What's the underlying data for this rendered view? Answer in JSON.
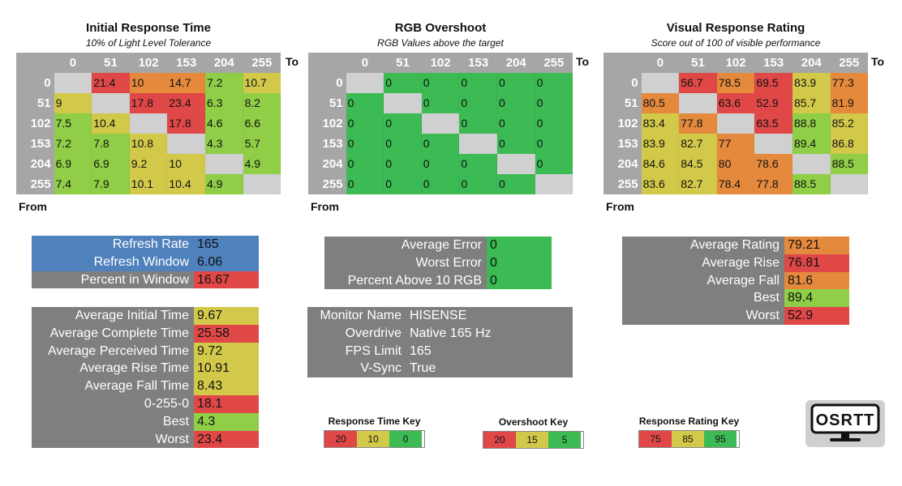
{
  "colors": {
    "red": "#e04848",
    "orange": "#e58a3d",
    "yellow": "#d2c94b",
    "green": "#3cba54",
    "lightgreen": "#8fce46",
    "gray": "#a6a6a6",
    "blue": "#4f81bd"
  },
  "chart_data": [
    {
      "type": "heatmap",
      "title": "Initial Response Time",
      "subtitle": "10% of Light Level Tolerance",
      "x_label": "To",
      "y_label": "From",
      "x": [
        "0",
        "51",
        "102",
        "153",
        "204",
        "255"
      ],
      "y": [
        "0",
        "51",
        "102",
        "153",
        "204",
        "255"
      ],
      "values": [
        [
          null,
          21.4,
          10,
          14.7,
          7.2,
          10.7
        ],
        [
          9,
          null,
          17.8,
          23.4,
          6.3,
          8.2
        ],
        [
          7.5,
          10.4,
          null,
          17.8,
          4.6,
          6.6
        ],
        [
          7.2,
          7.8,
          10.8,
          null,
          4.3,
          5.7
        ],
        [
          6.9,
          6.9,
          9.2,
          10,
          null,
          4.9
        ],
        [
          7.4,
          7.9,
          10.1,
          10.4,
          4.9,
          null
        ]
      ],
      "colors": [
        [
          null,
          "red",
          "orange",
          "orange",
          "lightgreen",
          "yellow"
        ],
        [
          "yellow",
          null,
          "red",
          "red",
          "lightgreen",
          "lightgreen"
        ],
        [
          "lightgreen",
          "yellow",
          null,
          "red",
          "lightgreen",
          "lightgreen"
        ],
        [
          "lightgreen",
          "lightgreen",
          "yellow",
          null,
          "lightgreen",
          "lightgreen"
        ],
        [
          "lightgreen",
          "lightgreen",
          "yellow",
          "yellow",
          null,
          "lightgreen"
        ],
        [
          "lightgreen",
          "lightgreen",
          "yellow",
          "yellow",
          "lightgreen",
          null
        ]
      ]
    },
    {
      "type": "heatmap",
      "title": "RGB Overshoot",
      "subtitle": "RGB Values above the target",
      "x_label": "To",
      "y_label": "From",
      "x": [
        "0",
        "51",
        "102",
        "153",
        "204",
        "255"
      ],
      "y": [
        "0",
        "51",
        "102",
        "153",
        "204",
        "255"
      ],
      "values": [
        [
          null,
          0,
          0,
          0,
          0,
          0
        ],
        [
          0,
          null,
          0,
          0,
          0,
          0
        ],
        [
          0,
          0,
          null,
          0,
          0,
          0
        ],
        [
          0,
          0,
          0,
          null,
          0,
          0
        ],
        [
          0,
          0,
          0,
          0,
          null,
          0
        ],
        [
          0,
          0,
          0,
          0,
          0,
          null
        ]
      ],
      "colors": [
        [
          null,
          "green",
          "green",
          "green",
          "green",
          "green"
        ],
        [
          "green",
          null,
          "green",
          "green",
          "green",
          "green"
        ],
        [
          "green",
          "green",
          null,
          "green",
          "green",
          "green"
        ],
        [
          "green",
          "green",
          "green",
          null,
          "green",
          "green"
        ],
        [
          "green",
          "green",
          "green",
          "green",
          null,
          "green"
        ],
        [
          "green",
          "green",
          "green",
          "green",
          "green",
          null
        ]
      ]
    },
    {
      "type": "heatmap",
      "title": "Visual Response Rating",
      "subtitle": "Score out of 100 of visible performance",
      "x_label": "To",
      "y_label": "From",
      "x": [
        "0",
        "51",
        "102",
        "153",
        "204",
        "255"
      ],
      "y": [
        "0",
        "51",
        "102",
        "153",
        "204",
        "255"
      ],
      "values": [
        [
          null,
          56.7,
          78.5,
          69.5,
          83.9,
          77.3
        ],
        [
          80.5,
          null,
          63.6,
          52.9,
          85.7,
          81.9
        ],
        [
          83.4,
          77.8,
          null,
          63.5,
          88.8,
          85.2
        ],
        [
          83.9,
          82.7,
          77,
          null,
          89.4,
          86.8
        ],
        [
          84.6,
          84.5,
          80,
          78.6,
          null,
          88.5
        ],
        [
          83.6,
          82.7,
          78.4,
          77.8,
          88.5,
          null
        ]
      ],
      "colors": [
        [
          null,
          "red",
          "orange",
          "red",
          "yellow",
          "orange"
        ],
        [
          "orange",
          null,
          "red",
          "red",
          "yellow",
          "orange"
        ],
        [
          "yellow",
          "orange",
          null,
          "red",
          "lightgreen",
          "yellow"
        ],
        [
          "yellow",
          "yellow",
          "orange",
          null,
          "lightgreen",
          "yellow"
        ],
        [
          "yellow",
          "yellow",
          "orange",
          "orange",
          null,
          "lightgreen"
        ],
        [
          "yellow",
          "yellow",
          "orange",
          "orange",
          "lightgreen",
          null
        ]
      ]
    }
  ],
  "refresh": [
    {
      "label": "Refresh Rate",
      "value": "165",
      "style": "blue"
    },
    {
      "label": "Refresh Window",
      "value": "6.06",
      "style": "blue"
    },
    {
      "label": "Percent in Window",
      "value": "16.67",
      "style": "gray",
      "color": "red"
    }
  ],
  "times": [
    {
      "label": "Average Initial Time",
      "value": "9.67",
      "color": "yellow"
    },
    {
      "label": "Average Complete Time",
      "value": "25.58",
      "color": "red"
    },
    {
      "label": "Average Perceived Time",
      "value": "9.72",
      "color": "yellow"
    },
    {
      "label": "Average Rise Time",
      "value": "10.91",
      "color": "yellow"
    },
    {
      "label": "Average Fall Time",
      "value": "8.43",
      "color": "yellow"
    },
    {
      "label": "0-255-0",
      "value": "18.1",
      "color": "red"
    },
    {
      "label": "Best",
      "value": "4.3",
      "color": "lightgreen"
    },
    {
      "label": "Worst",
      "value": "23.4",
      "color": "red"
    }
  ],
  "overshoot_stats": [
    {
      "label": "Average Error",
      "value": "0",
      "color": "green"
    },
    {
      "label": "Worst Error",
      "value": "0",
      "color": "green"
    },
    {
      "label": "Percent Above 10 RGB",
      "value": "0",
      "color": "green"
    }
  ],
  "monitor": [
    {
      "label": "Monitor Name",
      "value": "HISENSE"
    },
    {
      "label": "Overdrive",
      "value": "Native 165 Hz"
    },
    {
      "label": "FPS Limit",
      "value": "165"
    },
    {
      "label": "V-Sync",
      "value": "True"
    }
  ],
  "rating_stats": [
    {
      "label": "Average Rating",
      "value": "79.21",
      "color": "orange"
    },
    {
      "label": "Average Rise",
      "value": "76.81",
      "color": "red"
    },
    {
      "label": "Average Fall",
      "value": "81.6",
      "color": "orange"
    },
    {
      "label": "Best",
      "value": "89.4",
      "color": "lightgreen"
    },
    {
      "label": "Worst",
      "value": "52.9",
      "color": "red"
    }
  ],
  "keys": [
    {
      "title": "Response Time Key",
      "items": [
        {
          "label": "20",
          "color": "red"
        },
        {
          "label": "10",
          "color": "yellow"
        },
        {
          "label": "0",
          "color": "green"
        }
      ]
    },
    {
      "title": "Overshoot Key",
      "items": [
        {
          "label": "20",
          "color": "red"
        },
        {
          "label": "15",
          "color": "yellow"
        },
        {
          "label": "5",
          "color": "green"
        }
      ]
    },
    {
      "title": "Response Rating Key",
      "items": [
        {
          "label": "75",
          "color": "red"
        },
        {
          "label": "85",
          "color": "yellow"
        },
        {
          "label": "95",
          "color": "green"
        }
      ]
    }
  ],
  "logo": {
    "text": "OSRTT"
  }
}
